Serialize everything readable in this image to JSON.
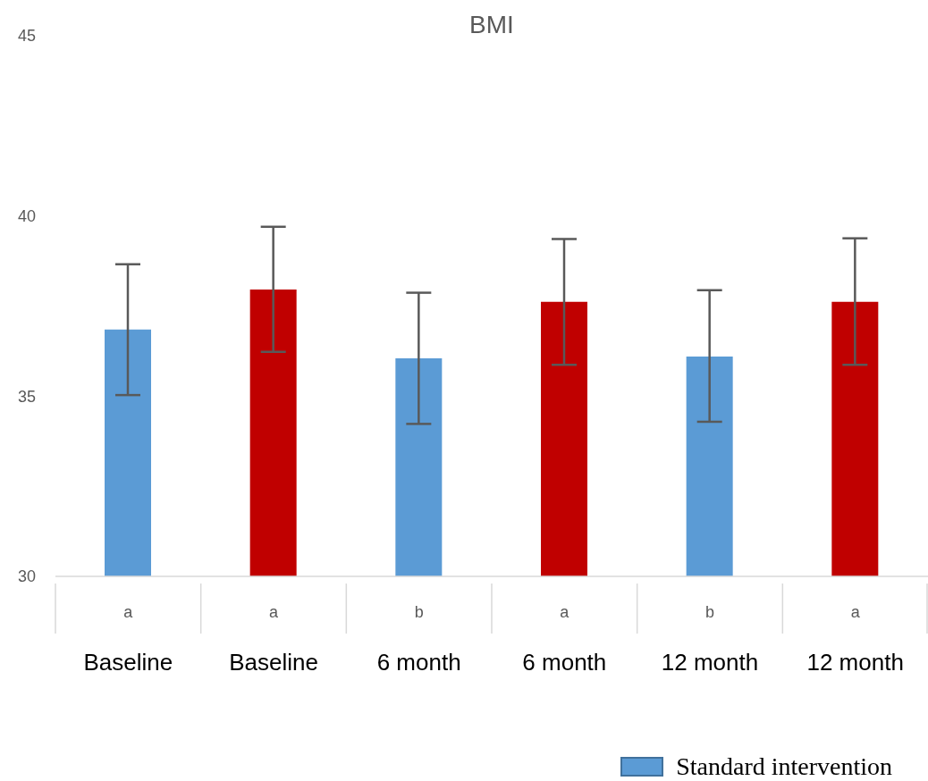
{
  "chart_data": {
    "type": "bar",
    "title": "BMI",
    "categories": [
      "Baseline",
      "Baseline",
      "6 month",
      "6 month",
      "12 month",
      "12 month"
    ],
    "series": [
      {
        "name": "Standard intervention",
        "color": "#5b9bd5",
        "values": [
          36.85,
          null,
          36.05,
          null,
          36.1,
          null
        ],
        "errors": [
          [
            35.03,
            38.66
          ],
          null,
          [
            34.23,
            37.87
          ],
          null,
          [
            34.29,
            37.94
          ],
          null
        ]
      },
      {
        "color": "#c00000",
        "values": [
          null,
          37.96,
          null,
          37.62,
          null,
          37.62
        ],
        "errors": [
          null,
          [
            36.23,
            39.7
          ],
          null,
          [
            35.87,
            39.36
          ],
          null,
          [
            35.87,
            39.38
          ]
        ]
      }
    ],
    "annotations": [
      "a",
      "a",
      "b",
      "a",
      "b",
      "a"
    ],
    "ylim": [
      30,
      45
    ],
    "yticks": [
      30,
      35,
      40,
      45
    ],
    "grid": false,
    "legend": "bottom right"
  }
}
